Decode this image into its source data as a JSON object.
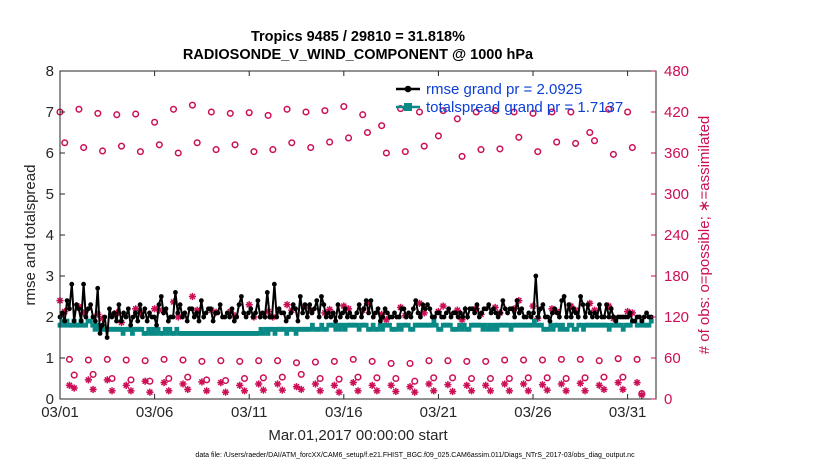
{
  "chart_data": {
    "type": "line",
    "title_line1": "Tropics 9485 / 29810 = 31.818%",
    "title_line2": "RADIOSONDE_V_WIND_COMPONENT @ 1000 hPa",
    "xlabel": "Mar.01,2017 00:00:00 start",
    "ylabel_left": "rmse and totalspread",
    "ylabel_right": "# of obs: o=possible; ∗=assimilated",
    "footnote": "data file: /Users/raeder/DAI/ATM_forcXX/CAM6_setup/f.e21.FHIST_BGC.f09_025.CAM6assim.011/Diags_NTrS_2017-03/obs_diag_output.nc",
    "x_range_days": [
      0,
      31.5
    ],
    "x_ticks": [
      0,
      5,
      10,
      15,
      20,
      25,
      30
    ],
    "x_tick_labels": [
      "03/01",
      "03/06",
      "03/11",
      "03/16",
      "03/21",
      "03/26",
      "03/31"
    ],
    "ylim_left": [
      0,
      8
    ],
    "y_ticks_left": [
      0,
      1,
      2,
      3,
      4,
      5,
      6,
      7,
      8
    ],
    "y_tick_labels_left": [
      "0",
      "1",
      "2",
      "3",
      "4",
      "5",
      "6",
      "7",
      "8"
    ],
    "ylim_right": [
      0,
      480
    ],
    "y_ticks_right": [
      0,
      60,
      120,
      180,
      240,
      300,
      360,
      420,
      480
    ],
    "y_tick_labels_right": [
      "0",
      "60",
      "120",
      "180",
      "240",
      "300",
      "360",
      "420",
      "480"
    ],
    "legend": [
      {
        "name": "rmse grand pr = 2.0925",
        "color": "#000000"
      },
      {
        "name": "totalspread grand pr = 1.7137",
        "color": "#0a8a86"
      }
    ],
    "rmse": [
      2.0,
      2.1,
      1.9,
      2.4,
      2.2,
      2.8,
      1.9,
      2.3,
      2.2,
      1.9,
      2.8,
      2.0,
      2.2,
      2.3,
      2.0,
      1.9,
      2.7,
      1.6,
      1.8,
      2.0,
      1.5,
      2.2,
      2.0,
      2.1,
      1.9,
      2.3,
      1.9,
      2.1,
      2.0,
      2.2,
      1.8,
      2.0,
      2.1,
      1.9,
      2.3,
      2.0,
      2.2,
      1.9,
      2.1,
      2.0,
      2.0,
      1.8,
      2.3,
      2.5,
      2.1,
      2.2,
      1.9,
      2.0,
      2.0,
      2.6,
      2.1,
      2.3,
      2.0,
      2.1,
      1.9,
      2.2,
      2.2,
      2.0,
      2.1,
      1.9,
      2.4,
      2.0,
      2.1,
      2.2,
      2.2,
      1.9,
      2.1,
      2.1,
      2.3,
      2.0,
      2.0,
      2.1,
      2.0,
      2.2,
      1.9,
      2.0,
      2.3,
      2.5,
      2.1,
      2.0,
      2.1,
      2.2,
      2.0,
      2.1,
      2.4,
      2.0,
      2.1,
      2.0,
      2.6,
      2.0,
      2.0,
      2.8,
      2.0,
      2.2,
      2.1,
      2.1,
      1.9,
      2.0,
      2.1,
      2.3,
      2.2,
      1.9,
      2.5,
      2.1,
      2.3,
      2.0,
      2.3,
      2.1,
      2.2,
      2.4,
      2.0,
      2.5,
      2.3,
      2.0,
      2.1,
      2.0,
      2.1,
      1.9,
      2.3,
      2.0,
      2.1,
      2.2,
      2.0,
      2.1,
      2.0,
      2.0,
      2.1,
      2.3,
      2.0,
      2.2,
      2.4,
      2.1,
      2.4,
      2.0,
      2.1,
      2.2,
      1.9,
      2.0,
      2.2,
      2.1,
      2.0,
      2.0,
      2.1,
      2.0,
      2.0,
      2.2,
      2.2,
      2.0,
      2.1,
      2.0,
      2.2,
      2.4,
      2.1,
      2.0,
      2.3,
      2.2,
      2.3,
      2.2,
      2.0,
      2.0,
      2.1,
      2.1,
      2.0,
      2.0,
      2.1,
      2.2,
      2.0,
      2.1,
      2.1,
      2.0,
      2.1,
      2.0,
      2.2,
      2.0,
      2.2,
      2.2,
      2.1,
      2.3,
      2.0,
      2.1,
      2.2,
      2.2,
      2.3,
      2.1,
      2.2,
      2.1,
      2.0,
      2.1,
      2.4,
      2.2,
      2.1,
      2.2,
      2.2,
      2.0,
      2.4,
      2.1,
      2.2,
      2.0,
      2.0,
      2.1,
      2.0,
      2.1,
      3.0,
      2.0,
      2.2,
      2.3,
      2.0,
      2.0,
      1.9,
      2.1,
      2.2,
      2.1,
      2.0,
      2.4,
      2.5,
      2.0,
      2.3,
      2.0,
      2.2,
      2.1,
      2.0,
      2.5,
      2.3,
      2.0,
      2.3,
      2.1,
      2.0,
      2.1,
      2.0,
      2.3,
      2.0,
      2.0,
      2.3,
      2.0,
      2.2,
      2.0,
      1.9,
      2.0,
      2.0,
      2.0,
      2.0,
      2.0,
      2.1,
      1.9,
      1.9,
      2.0,
      2.0,
      1.9,
      2.0,
      2.1,
      2.0,
      2.0
    ],
    "spread": [
      1.8,
      1.9,
      1.8,
      1.9,
      1.8,
      1.8,
      1.9,
      1.8,
      1.8,
      1.9,
      1.8,
      1.8,
      1.9,
      1.9,
      1.8,
      1.7,
      1.8,
      1.7,
      1.7,
      1.7,
      1.7,
      1.7,
      1.7,
      1.7,
      1.7,
      1.7,
      1.7,
      1.6,
      1.7,
      1.7,
      1.7,
      1.6,
      1.7,
      1.7,
      1.7,
      1.7,
      1.6,
      1.6,
      1.7,
      1.6,
      1.7,
      1.6,
      1.7,
      1.6,
      1.6,
      1.7,
      1.6,
      1.7,
      1.6,
      1.6,
      1.7,
      1.6,
      1.6,
      1.6,
      1.6,
      1.6,
      1.6,
      1.6,
      1.6,
      1.6,
      1.6,
      1.6,
      1.6,
      1.6,
      1.6,
      1.6,
      1.6,
      1.6,
      1.6,
      1.6,
      1.6,
      1.6,
      1.6,
      1.6,
      1.6,
      1.6,
      1.6,
      1.6,
      1.6,
      1.6,
      1.6,
      1.6,
      1.6,
      1.6,
      1.6,
      1.6,
      1.7,
      1.6,
      1.7,
      1.6,
      1.7,
      1.7,
      1.6,
      1.7,
      1.7,
      1.7,
      1.7,
      1.6,
      1.7,
      1.7,
      1.7,
      1.6,
      1.7,
      1.7,
      1.7,
      1.7,
      1.7,
      1.7,
      1.8,
      1.7,
      1.7,
      1.7,
      1.8,
      1.7,
      1.7,
      1.8,
      1.8,
      1.8,
      1.7,
      1.8,
      1.7,
      1.8,
      1.7,
      1.8,
      1.8,
      1.8,
      1.8,
      1.8,
      1.7,
      1.8,
      1.8,
      1.8,
      1.7,
      1.7,
      1.8,
      1.7,
      1.7,
      1.8,
      1.7,
      1.8,
      1.8,
      1.8,
      1.7,
      1.7,
      1.7,
      1.8,
      1.7,
      1.8,
      1.8,
      1.8,
      1.7,
      1.7,
      1.8,
      1.8,
      1.8,
      1.8,
      1.8,
      1.8,
      1.8,
      1.8,
      1.9,
      1.8,
      1.7,
      1.7,
      1.8,
      1.8,
      1.8,
      1.8,
      1.7,
      1.7,
      1.7,
      1.8,
      1.7,
      1.8,
      1.7,
      1.7,
      1.8,
      1.8,
      1.8,
      1.8,
      1.8,
      1.7,
      1.8,
      1.7,
      1.8,
      1.7,
      1.8,
      1.7,
      1.8,
      1.8,
      1.8,
      1.8,
      1.8,
      1.7,
      1.8,
      1.8,
      1.8,
      1.8,
      1.8,
      1.8,
      1.8,
      1.8,
      1.8,
      1.9,
      1.8,
      1.8,
      1.8,
      1.7,
      1.7,
      1.7,
      1.8,
      1.7,
      1.8,
      1.8,
      1.7,
      1.8,
      1.7,
      1.7,
      1.8,
      1.8,
      1.7,
      1.7,
      1.8,
      1.8,
      1.7,
      1.8,
      1.8,
      1.8,
      1.8,
      1.8,
      1.8,
      1.8,
      1.8,
      1.8,
      1.8,
      1.7,
      1.8,
      1.8,
      1.8,
      1.8,
      1.8,
      1.7,
      1.8,
      1.8,
      1.8,
      1.9,
      1.9,
      1.8,
      1.8,
      1.9,
      1.8,
      1.8,
      1.8,
      1.9
    ],
    "obs_possible": [
      [
        0.0,
        420
      ],
      [
        0.25,
        375
      ],
      [
        0.5,
        58
      ],
      [
        0.75,
        35
      ],
      [
        1.0,
        424
      ],
      [
        1.25,
        368
      ],
      [
        1.5,
        57
      ],
      [
        1.75,
        36
      ],
      [
        2.0,
        418
      ],
      [
        2.25,
        363
      ],
      [
        2.5,
        58
      ],
      [
        2.75,
        30
      ],
      [
        3.0,
        416
      ],
      [
        3.25,
        370
      ],
      [
        3.5,
        57
      ],
      [
        3.75,
        28
      ],
      [
        4.0,
        417
      ],
      [
        4.25,
        362
      ],
      [
        4.5,
        56
      ],
      [
        4.75,
        26
      ],
      [
        5.0,
        405
      ],
      [
        5.25,
        372
      ],
      [
        5.5,
        58
      ],
      [
        5.75,
        30
      ],
      [
        6.0,
        424
      ],
      [
        6.25,
        360
      ],
      [
        6.5,
        57
      ],
      [
        6.75,
        32
      ],
      [
        7.0,
        430
      ],
      [
        7.25,
        375
      ],
      [
        7.5,
        55
      ],
      [
        7.75,
        28
      ],
      [
        8.0,
        420
      ],
      [
        8.25,
        365
      ],
      [
        8.5,
        56
      ],
      [
        8.75,
        27
      ],
      [
        9.0,
        418
      ],
      [
        9.25,
        372
      ],
      [
        9.5,
        55
      ],
      [
        9.75,
        30
      ],
      [
        10.0,
        419
      ],
      [
        10.25,
        362
      ],
      [
        10.5,
        56
      ],
      [
        10.75,
        31
      ],
      [
        11.0,
        415
      ],
      [
        11.25,
        365
      ],
      [
        11.5,
        56
      ],
      [
        11.75,
        32
      ],
      [
        12.0,
        424
      ],
      [
        12.25,
        375
      ],
      [
        12.5,
        53
      ],
      [
        12.75,
        36
      ],
      [
        13.0,
        420
      ],
      [
        13.25,
        368
      ],
      [
        13.5,
        54
      ],
      [
        13.75,
        30
      ],
      [
        14.0,
        422
      ],
      [
        14.25,
        376
      ],
      [
        14.5,
        55
      ],
      [
        14.75,
        29
      ],
      [
        15.0,
        428
      ],
      [
        15.25,
        382
      ],
      [
        15.5,
        58
      ],
      [
        15.75,
        32
      ],
      [
        16.0,
        416
      ],
      [
        16.25,
        390
      ],
      [
        16.5,
        55
      ],
      [
        16.75,
        31
      ],
      [
        17.0,
        400
      ],
      [
        17.25,
        360
      ],
      [
        17.5,
        52
      ],
      [
        17.75,
        30
      ],
      [
        18.0,
        425
      ],
      [
        18.25,
        362
      ],
      [
        18.5,
        52
      ],
      [
        18.75,
        26
      ],
      [
        19.0,
        420
      ],
      [
        19.25,
        370
      ],
      [
        19.5,
        56
      ],
      [
        19.75,
        31
      ],
      [
        20.0,
        385
      ],
      [
        20.25,
        422
      ],
      [
        20.5,
        56
      ],
      [
        20.75,
        31
      ],
      [
        21.0,
        410
      ],
      [
        21.25,
        355
      ],
      [
        21.5,
        55
      ],
      [
        21.75,
        30
      ],
      [
        22.0,
        420
      ],
      [
        22.25,
        365
      ],
      [
        22.5,
        55
      ],
      [
        22.75,
        30
      ],
      [
        23.0,
        422
      ],
      [
        23.25,
        366
      ],
      [
        23.5,
        57
      ],
      [
        23.75,
        30
      ],
      [
        24.0,
        420
      ],
      [
        24.25,
        383
      ],
      [
        24.5,
        57
      ],
      [
        24.75,
        31
      ],
      [
        25.0,
        418
      ],
      [
        25.25,
        362
      ],
      [
        25.5,
        57
      ],
      [
        25.75,
        31
      ],
      [
        26.0,
        420
      ],
      [
        26.25,
        376
      ],
      [
        26.5,
        58
      ],
      [
        26.75,
        30
      ],
      [
        27.0,
        420
      ],
      [
        27.25,
        374
      ],
      [
        27.5,
        58
      ],
      [
        27.75,
        31
      ],
      [
        28.0,
        390
      ],
      [
        28.25,
        378
      ],
      [
        28.5,
        56
      ],
      [
        28.75,
        32
      ],
      [
        29.0,
        424
      ],
      [
        29.25,
        358
      ],
      [
        29.5,
        59
      ],
      [
        29.75,
        32
      ],
      [
        30.0,
        420
      ],
      [
        30.25,
        368
      ],
      [
        30.5,
        58
      ],
      [
        30.75,
        8
      ]
    ],
    "obs_assimilated": [
      [
        0.0,
        144
      ],
      [
        0.25,
        128
      ],
      [
        0.5,
        20
      ],
      [
        0.75,
        16
      ],
      [
        1.0,
        135
      ],
      [
        1.25,
        126
      ],
      [
        1.5,
        28
      ],
      [
        1.75,
        14
      ],
      [
        2.0,
        124
      ],
      [
        2.25,
        118
      ],
      [
        2.5,
        28
      ],
      [
        2.75,
        12
      ],
      [
        3.0,
        126
      ],
      [
        3.25,
        112
      ],
      [
        3.5,
        20
      ],
      [
        3.75,
        12
      ],
      [
        4.0,
        132
      ],
      [
        4.25,
        126
      ],
      [
        4.5,
        26
      ],
      [
        4.75,
        10
      ],
      [
        5.0,
        132
      ],
      [
        5.25,
        130
      ],
      [
        5.5,
        24
      ],
      [
        5.75,
        12
      ],
      [
        6.0,
        142
      ],
      [
        6.25,
        120
      ],
      [
        6.5,
        22
      ],
      [
        6.75,
        14
      ],
      [
        7.0,
        150
      ],
      [
        7.25,
        130
      ],
      [
        7.5,
        25
      ],
      [
        7.75,
        12
      ],
      [
        8.0,
        130
      ],
      [
        8.25,
        127
      ],
      [
        8.5,
        24
      ],
      [
        8.75,
        10
      ],
      [
        9.0,
        128
      ],
      [
        9.25,
        122
      ],
      [
        9.5,
        20
      ],
      [
        9.75,
        12
      ],
      [
        10.0,
        138
      ],
      [
        10.25,
        120
      ],
      [
        10.5,
        22
      ],
      [
        10.75,
        13
      ],
      [
        11.0,
        128
      ],
      [
        11.25,
        120
      ],
      [
        11.5,
        22
      ],
      [
        11.75,
        13
      ],
      [
        12.0,
        138
      ],
      [
        12.25,
        130
      ],
      [
        12.5,
        18
      ],
      [
        12.75,
        14
      ],
      [
        13.0,
        135
      ],
      [
        13.25,
        128
      ],
      [
        13.5,
        22
      ],
      [
        13.75,
        12
      ],
      [
        14.0,
        126
      ],
      [
        14.25,
        131
      ],
      [
        14.5,
        20
      ],
      [
        14.75,
        10
      ],
      [
        15.0,
        136
      ],
      [
        15.25,
        132
      ],
      [
        15.5,
        24
      ],
      [
        15.75,
        12
      ],
      [
        16.0,
        130
      ],
      [
        16.25,
        140
      ],
      [
        16.5,
        20
      ],
      [
        16.75,
        12
      ],
      [
        17.0,
        124
      ],
      [
        17.25,
        116
      ],
      [
        17.5,
        20
      ],
      [
        17.75,
        11
      ],
      [
        18.0,
        134
      ],
      [
        18.25,
        122
      ],
      [
        18.5,
        18
      ],
      [
        18.75,
        10
      ],
      [
        19.0,
        140
      ],
      [
        19.25,
        126
      ],
      [
        19.5,
        22
      ],
      [
        19.75,
        12
      ],
      [
        20.0,
        128
      ],
      [
        20.25,
        136
      ],
      [
        20.5,
        21
      ],
      [
        20.75,
        11
      ],
      [
        21.0,
        130
      ],
      [
        21.25,
        116
      ],
      [
        21.5,
        20
      ],
      [
        21.75,
        12
      ],
      [
        22.0,
        132
      ],
      [
        22.25,
        124
      ],
      [
        22.5,
        20
      ],
      [
        22.75,
        12
      ],
      [
        23.0,
        134
      ],
      [
        23.25,
        126
      ],
      [
        23.5,
        22
      ],
      [
        23.75,
        12
      ],
      [
        24.0,
        132
      ],
      [
        24.25,
        144
      ],
      [
        24.5,
        22
      ],
      [
        24.75,
        12
      ],
      [
        25.0,
        136
      ],
      [
        25.25,
        118
      ],
      [
        25.5,
        21
      ],
      [
        25.75,
        13
      ],
      [
        26.0,
        132
      ],
      [
        26.25,
        128
      ],
      [
        26.5,
        22
      ],
      [
        26.75,
        12
      ],
      [
        27.0,
        136
      ],
      [
        27.25,
        130
      ],
      [
        27.5,
        23
      ],
      [
        27.75,
        12
      ],
      [
        28.0,
        140
      ],
      [
        28.25,
        130
      ],
      [
        28.5,
        20
      ],
      [
        28.75,
        14
      ],
      [
        29.0,
        136
      ],
      [
        29.25,
        118
      ],
      [
        29.5,
        24
      ],
      [
        29.75,
        14
      ],
      [
        30.0,
        128
      ],
      [
        30.25,
        126
      ],
      [
        30.5,
        24
      ],
      [
        30.75,
        6
      ]
    ]
  }
}
